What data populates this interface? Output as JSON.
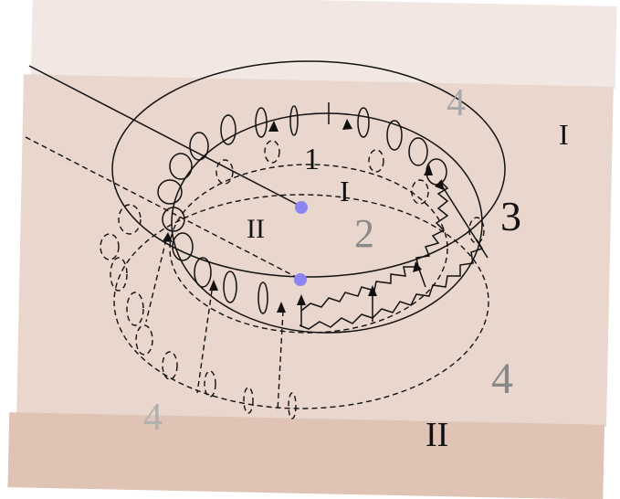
{
  "colors": {
    "background": "#ffffff",
    "band_top": "#f2e7e2",
    "band_middle": "#e9d6cc",
    "band_bottom": "#dfc3b4",
    "ink": "#111111",
    "point": "#8d86f2",
    "faint_label": "#9a9a9a"
  },
  "labels": {
    "region_1": "1",
    "region_2": "2",
    "region_3": "3",
    "region_4_top": "4",
    "region_4_right": "4",
    "region_4_left": "4",
    "roman_I_top_right": "I",
    "roman_I_center": "I",
    "roman_II_left": "II",
    "roman_II_bottom": "II"
  }
}
